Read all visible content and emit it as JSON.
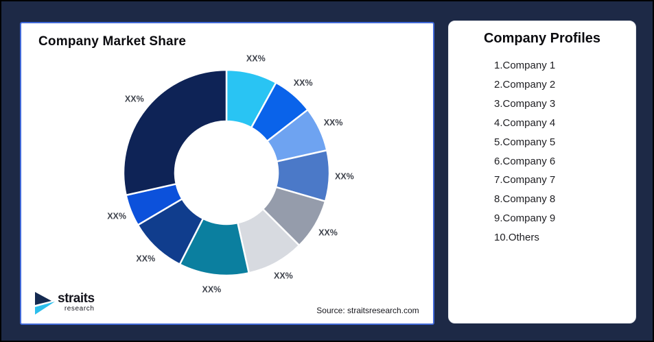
{
  "page": {
    "background_color": "#1D2946",
    "outer_border_color": "#000000"
  },
  "chart_card": {
    "title": "Company Market Share",
    "source_text": "Source: straitsresearch.com",
    "border_color": "#4169D9"
  },
  "logo": {
    "name": "straits",
    "sub": "research",
    "mark_navy": "#152A50",
    "mark_cyan": "#2BBEEC"
  },
  "chart_data": {
    "type": "pie",
    "donut": true,
    "title": "Company Market Share",
    "start_angle_deg": 0,
    "direction": "clockwise",
    "inner_radius_ratio": 0.5,
    "label_color": "#3F434C",
    "slice_gap_color": "#FFFFFF",
    "slices": [
      {
        "label": "XX%",
        "value_pct": 8,
        "color": "#29C4F3"
      },
      {
        "label": "XX%",
        "value_pct": 6.5,
        "color": "#0A63EA"
      },
      {
        "label": "XX%",
        "value_pct": 7,
        "color": "#6EA3F1"
      },
      {
        "label": "XX%",
        "value_pct": 8,
        "color": "#4B79C8"
      },
      {
        "label": "XX%",
        "value_pct": 8,
        "color": "#959CAB"
      },
      {
        "label": "XX%",
        "value_pct": 9,
        "color": "#D7DAE0"
      },
      {
        "label": "XX%",
        "value_pct": 11,
        "color": "#0B7F9F"
      },
      {
        "label": "XX%",
        "value_pct": 9,
        "color": "#103D8D"
      },
      {
        "label": "XX%",
        "value_pct": 5,
        "color": "#0C51DB"
      },
      {
        "label": "XX%",
        "value_pct": 28.5,
        "color": "#0E2356"
      }
    ]
  },
  "profiles_card": {
    "title": "Company Profiles",
    "items": [
      "1.Company 1",
      "2.Company 2",
      "3.Company 3",
      "4.Company 4",
      "5.Company 5",
      "6.Company 6",
      "7.Company 7",
      "8.Company 8",
      "9.Company 9",
      "10.Others"
    ]
  }
}
